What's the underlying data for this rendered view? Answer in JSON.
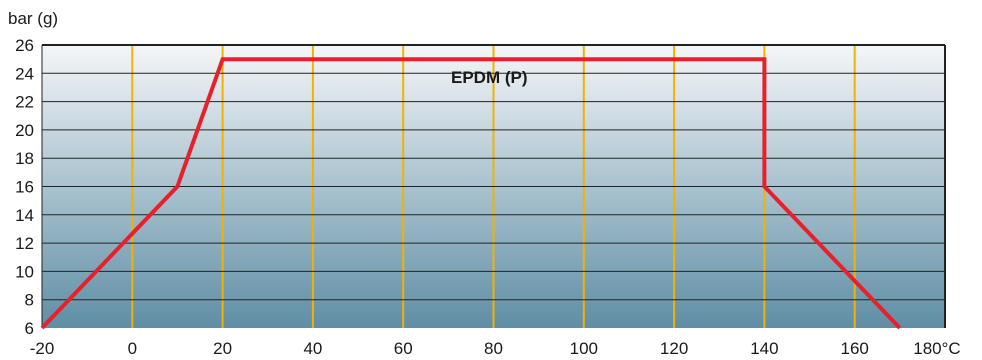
{
  "chart_data": {
    "type": "line",
    "ylabel": "bar (g)",
    "xlabel": "",
    "x_unit": "°C",
    "xlim": [
      -20,
      180
    ],
    "ylim": [
      6,
      26
    ],
    "x_ticks": [
      -20,
      0,
      20,
      40,
      60,
      80,
      100,
      120,
      140,
      160,
      180
    ],
    "y_ticks": [
      6,
      8,
      10,
      12,
      14,
      16,
      18,
      20,
      22,
      24,
      26
    ],
    "x_tick_labels": [
      "-20",
      "0",
      "20",
      "40",
      "60",
      "80",
      "100",
      "120",
      "140",
      "160",
      "180°C"
    ],
    "y_tick_labels": [
      "6",
      "8",
      "10",
      "12",
      "14",
      "16",
      "18",
      "20",
      "22",
      "24",
      "26"
    ],
    "grid": true,
    "series": [
      {
        "name": "EPDM (P)",
        "color": "#e8202a",
        "points": [
          [
            -20,
            6
          ],
          [
            10,
            16
          ],
          [
            20,
            25
          ],
          [
            140,
            25
          ],
          [
            140,
            16
          ],
          [
            170,
            6
          ]
        ]
      }
    ],
    "colors": {
      "vertical_grid": "#f2b200",
      "horizontal_grid": "#222222",
      "gradient_top": "#f4f6f8",
      "gradient_bottom": "#5f8ea5"
    }
  }
}
